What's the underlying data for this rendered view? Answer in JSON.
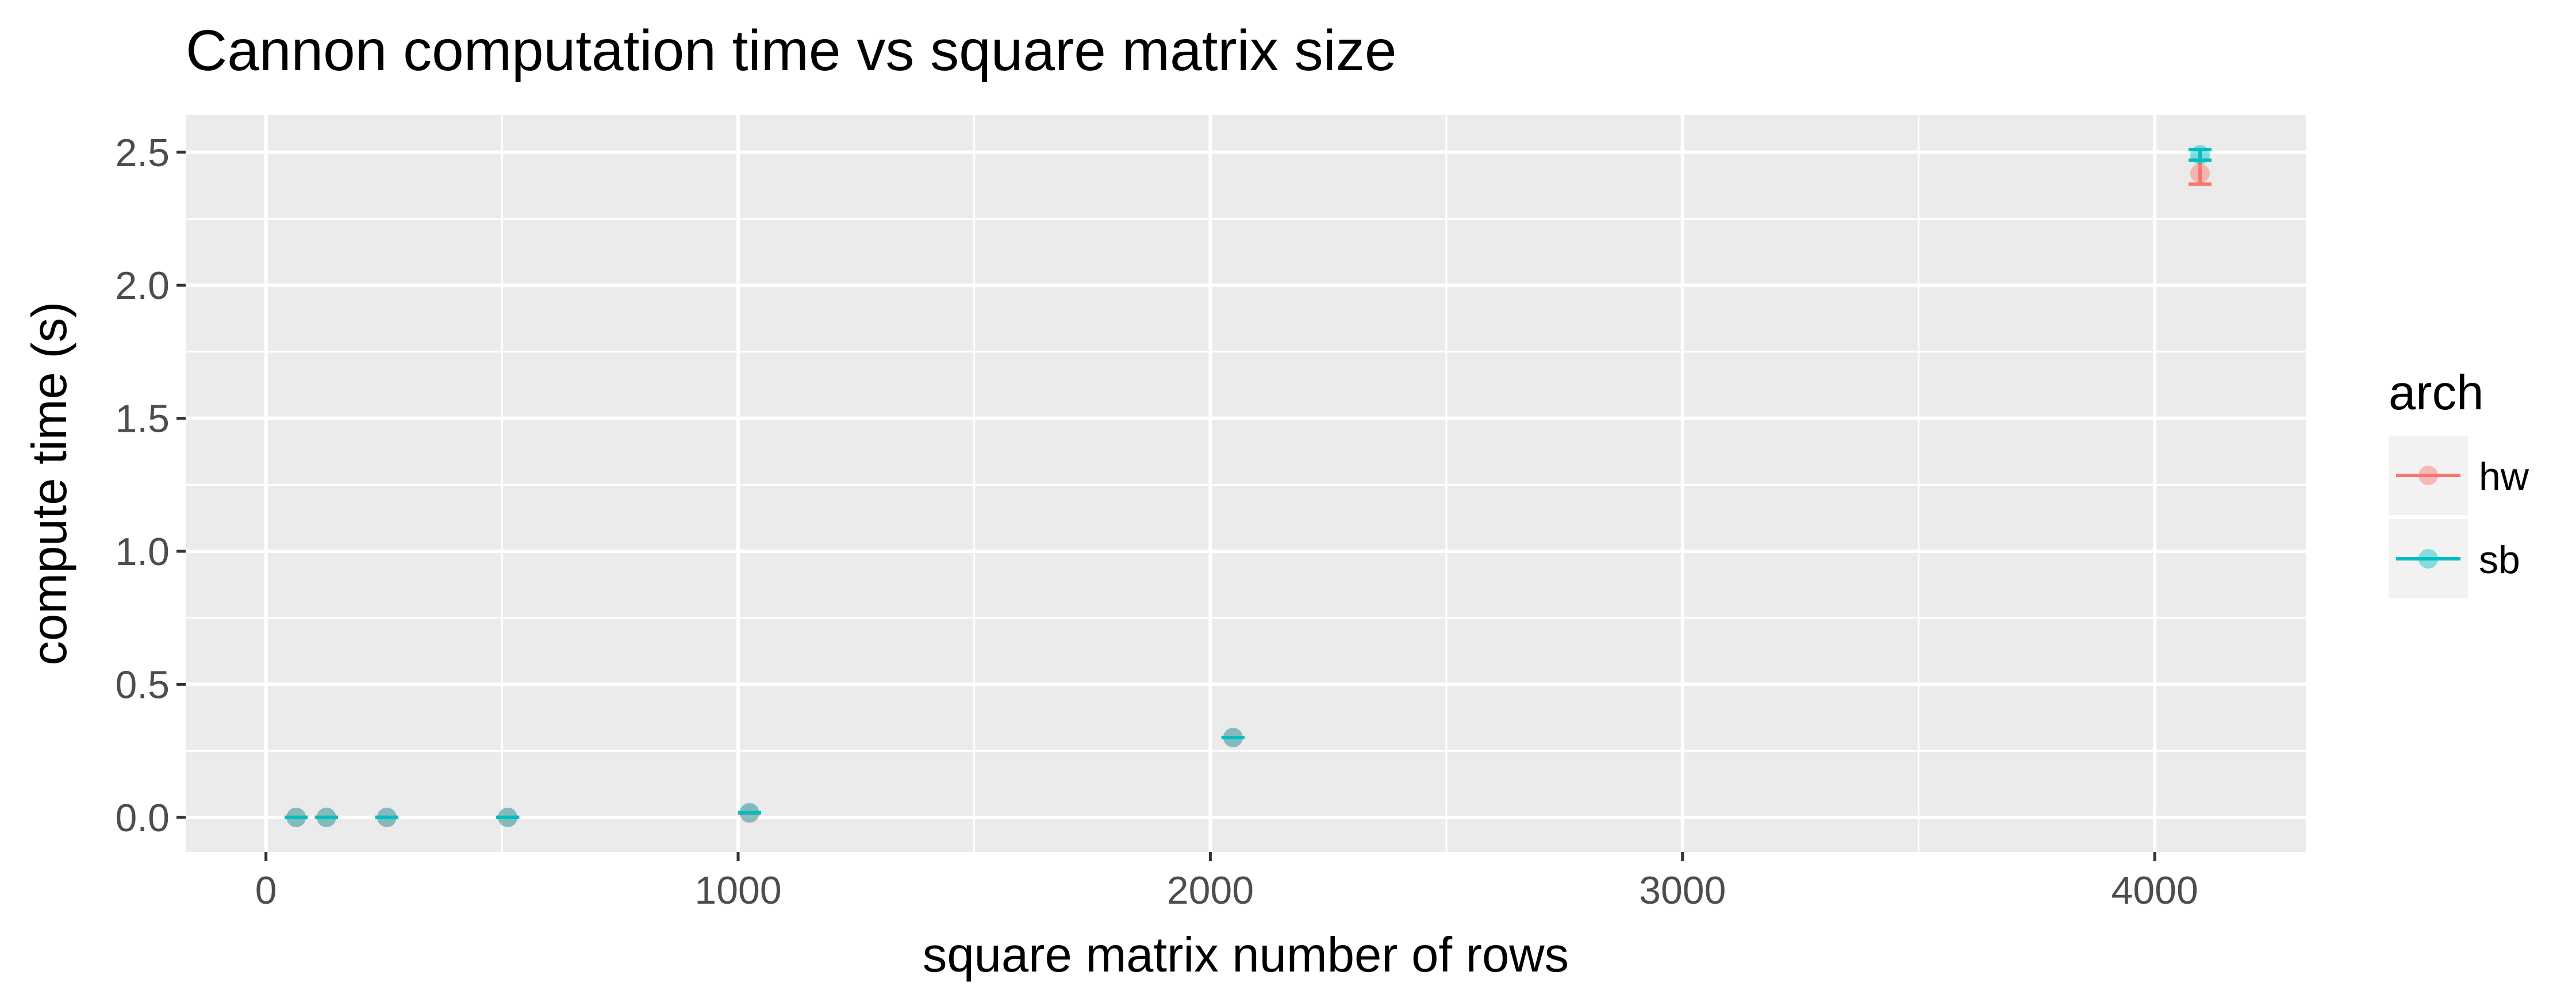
{
  "chart_data": {
    "type": "scatter",
    "title": "Cannon computation time vs square matrix size",
    "xlabel": "square matrix number of rows",
    "ylabel": "compute time (s)",
    "xlim": [
      -170,
      4320
    ],
    "ylim": [
      -0.13,
      2.64
    ],
    "x_ticks": [
      0,
      1000,
      2000,
      3000,
      4000
    ],
    "x_tick_labels": [
      "0",
      "1000",
      "2000",
      "3000",
      "4000"
    ],
    "y_ticks": [
      0.0,
      0.5,
      1.0,
      1.5,
      2.0,
      2.5
    ],
    "y_tick_labels": [
      "0.0",
      "0.5",
      "1.0",
      "1.5",
      "2.0",
      "2.5"
    ],
    "grid": true,
    "background": "#ebebeb",
    "legend": {
      "title": "arch",
      "position": "right"
    },
    "series": [
      {
        "name": "hw",
        "color": "#f8766d",
        "points": [
          {
            "x": 64,
            "y": 0.0,
            "lo": 0.0,
            "hi": 0.0
          },
          {
            "x": 128,
            "y": 0.0,
            "lo": 0.0,
            "hi": 0.0
          },
          {
            "x": 256,
            "y": 0.0,
            "lo": 0.0,
            "hi": 0.0
          },
          {
            "x": 512,
            "y": 0.0,
            "lo": 0.0,
            "hi": 0.0
          },
          {
            "x": 1024,
            "y": 0.015,
            "lo": 0.015,
            "hi": 0.015
          },
          {
            "x": 2048,
            "y": 0.3,
            "lo": 0.3,
            "hi": 0.3
          },
          {
            "x": 4096,
            "y": 2.42,
            "lo": 2.38,
            "hi": 2.47
          }
        ]
      },
      {
        "name": "sb",
        "color": "#00bfc4",
        "points": [
          {
            "x": 64,
            "y": 0.0,
            "lo": 0.0,
            "hi": 0.0
          },
          {
            "x": 128,
            "y": 0.0,
            "lo": 0.0,
            "hi": 0.0
          },
          {
            "x": 256,
            "y": 0.0,
            "lo": 0.0,
            "hi": 0.0
          },
          {
            "x": 512,
            "y": 0.0,
            "lo": 0.0,
            "hi": 0.0
          },
          {
            "x": 1024,
            "y": 0.018,
            "lo": 0.018,
            "hi": 0.018
          },
          {
            "x": 2048,
            "y": 0.3,
            "lo": 0.3,
            "hi": 0.3
          },
          {
            "x": 4096,
            "y": 2.49,
            "lo": 2.47,
            "hi": 2.51
          }
        ]
      }
    ]
  }
}
